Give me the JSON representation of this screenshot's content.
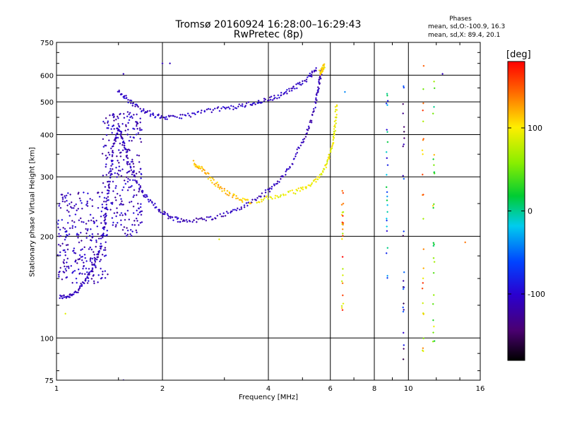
{
  "title": [
    "Tromsø 20160924 16:28:00–16:29:43",
    "RwPretec (8p)"
  ],
  "phases_legend": {
    "title": "Phases",
    "line_o": "mean, sd,O:-100.9, 16.3",
    "line_x": "mean, sd,X:  89.4, 20.1"
  },
  "colorbar": {
    "unit": "[deg]",
    "min": -180,
    "max": 180,
    "ticks": [
      100,
      0,
      -100
    ],
    "tick_labels": [
      "100",
      "0",
      "-100"
    ]
  },
  "chart_data": {
    "type": "scatter",
    "xlabel": "Frequency [MHz]",
    "ylabel": "Stationary phase Virtual Height [km]",
    "x_scale": "log",
    "y_scale": "log",
    "xlim": [
      1,
      16
    ],
    "ylim": [
      75,
      750
    ],
    "x_ticks": [
      1,
      2,
      4,
      6,
      8,
      10,
      16
    ],
    "x_tick_labels": [
      "1",
      "2",
      "4",
      "6",
      "8",
      "10",
      "16"
    ],
    "y_ticks": [
      75,
      100,
      200,
      300,
      400,
      500,
      600,
      750
    ],
    "y_tick_labels": [
      "75",
      "100",
      "200",
      "300",
      "400",
      "500",
      "600",
      "750"
    ],
    "grid": true,
    "traces": [
      {
        "label": "lower E/F trace",
        "phase": -110,
        "points": [
          [
            1.02,
            132
          ],
          [
            1.08,
            133
          ],
          [
            1.15,
            138
          ],
          [
            1.22,
            150
          ],
          [
            1.28,
            165
          ],
          [
            1.33,
            185
          ],
          [
            1.37,
            220
          ],
          [
            1.4,
            270
          ],
          [
            1.43,
            320
          ],
          [
            1.46,
            380
          ],
          [
            1.5,
            420
          ],
          [
            1.55,
            380
          ],
          [
            1.6,
            330
          ],
          [
            1.7,
            285
          ],
          [
            1.8,
            260
          ],
          [
            1.95,
            240
          ],
          [
            2.1,
            228
          ],
          [
            2.3,
            222
          ],
          [
            2.6,
            224
          ],
          [
            3.0,
            232
          ],
          [
            3.4,
            245
          ],
          [
            3.8,
            262
          ],
          [
            4.2,
            285
          ],
          [
            4.6,
            320
          ],
          [
            5.0,
            380
          ],
          [
            5.3,
            440
          ],
          [
            5.5,
            520
          ],
          [
            5.6,
            580
          ],
          [
            5.7,
            640
          ]
        ]
      },
      {
        "label": "upper F trace",
        "phase": -105,
        "points": [
          [
            1.5,
            540
          ],
          [
            1.6,
            505
          ],
          [
            1.75,
            475
          ],
          [
            1.9,
            455
          ],
          [
            2.1,
            448
          ],
          [
            2.4,
            458
          ],
          [
            2.8,
            474
          ],
          [
            3.2,
            482
          ],
          [
            3.6,
            495
          ],
          [
            4.0,
            508
          ],
          [
            4.4,
            528
          ],
          [
            4.8,
            555
          ],
          [
            5.2,
            590
          ],
          [
            5.5,
            630
          ]
        ]
      },
      {
        "label": "x-mode trace",
        "phase": 95,
        "points": [
          [
            3.7,
            255
          ],
          [
            4.2,
            262
          ],
          [
            4.8,
            272
          ],
          [
            5.3,
            285
          ],
          [
            5.7,
            310
          ],
          [
            5.95,
            340
          ],
          [
            6.1,
            380
          ],
          [
            6.2,
            430
          ],
          [
            6.25,
            490
          ]
        ]
      },
      {
        "label": "curved x-mode arc",
        "phase": 115,
        "points": [
          [
            2.45,
            330
          ],
          [
            2.6,
            315
          ],
          [
            2.8,
            290
          ],
          [
            3.0,
            272
          ],
          [
            3.3,
            258
          ],
          [
            3.6,
            252
          ]
        ]
      },
      {
        "label": "top x-mode fragment",
        "phase": 105,
        "points": [
          [
            5.6,
            610
          ],
          [
            5.7,
            625
          ],
          [
            5.8,
            640
          ]
        ]
      }
    ],
    "clusters": [
      {
        "label": "low-frequency spread",
        "x_range": [
          1.35,
          1.75
        ],
        "y_range": [
          200,
          470
        ],
        "phase": -110
      },
      {
        "label": "low-frequency band",
        "x_range": [
          1.0,
          1.4
        ],
        "y_range": [
          145,
          270
        ],
        "phase": -110
      }
    ],
    "vertical_streaks": [
      {
        "x": 6.5,
        "y_range": [
          120,
          280
        ],
        "phase": 120
      },
      {
        "x": 8.7,
        "y_range": [
          150,
          560
        ],
        "phase": -40
      },
      {
        "x": 9.7,
        "y_range": [
          75,
          560
        ],
        "phase": -110
      },
      {
        "x": 11.0,
        "y_range": [
          90,
          640
        ],
        "phase": 110
      },
      {
        "x": 11.8,
        "y_range": [
          90,
          600
        ],
        "phase": 60
      }
    ],
    "isolated_points": [
      {
        "x": 2.0,
        "y": 650,
        "phase": -110
      },
      {
        "x": 2.1,
        "y": 650,
        "phase": -110
      },
      {
        "x": 1.55,
        "y": 605,
        "phase": -110
      },
      {
        "x": 12.5,
        "y": 605,
        "phase": -110
      },
      {
        "x": 14.5,
        "y": 192,
        "phase": 140
      },
      {
        "x": 1.55,
        "y": 75,
        "phase": -110
      },
      {
        "x": 1.06,
        "y": 118,
        "phase": 90
      },
      {
        "x": 2.9,
        "y": 196,
        "phase": 90
      },
      {
        "x": 6.6,
        "y": 535,
        "phase": -40
      }
    ]
  }
}
